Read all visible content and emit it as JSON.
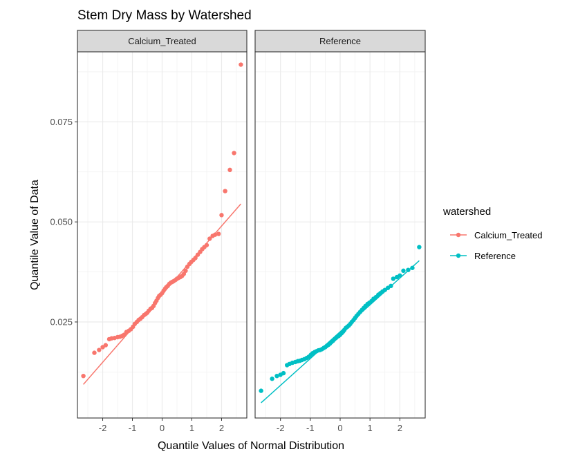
{
  "chart_data": {
    "type": "scatter",
    "title": "Stem Dry Mass by Watershed",
    "xlabel": "Quantile Values of Normal Distribution",
    "ylabel": "Quantile Value of Data",
    "xlim": [
      -2.85,
      2.85
    ],
    "ylim": [
      0.001,
      0.0925
    ],
    "x_ticks": [
      -2,
      -1,
      0,
      1,
      2
    ],
    "x_tick_labels": [
      "-2",
      "-1",
      "0",
      "1",
      "2"
    ],
    "y_ticks": [
      0.025,
      0.05,
      0.075
    ],
    "y_tick_labels": [
      "0.025",
      "0.050",
      "0.075"
    ],
    "grid": true,
    "facets": [
      "Calcium_Treated",
      "Reference"
    ],
    "legend": {
      "title": "watershed",
      "position": "right",
      "entries": [
        "Calcium_Treated",
        "Reference"
      ]
    },
    "series": [
      {
        "name": "Calcium_Treated",
        "color": "#F8766D",
        "qq_line": {
          "x": [
            -2.65,
            2.65
          ],
          "y": [
            0.0094,
            0.0545
          ]
        },
        "points": [
          [
            -2.65,
            0.0115
          ],
          [
            -2.28,
            0.0173
          ],
          [
            -2.12,
            0.018
          ],
          [
            -2.0,
            0.0187
          ],
          [
            -1.9,
            0.0192
          ],
          [
            -1.78,
            0.0207
          ],
          [
            -1.7,
            0.0209
          ],
          [
            -1.6,
            0.021
          ],
          [
            -1.5,
            0.0212
          ],
          [
            -1.42,
            0.0213
          ],
          [
            -1.35,
            0.0215
          ],
          [
            -1.28,
            0.0218
          ],
          [
            -1.2,
            0.0225
          ],
          [
            -1.12,
            0.0228
          ],
          [
            -1.05,
            0.0232
          ],
          [
            -0.98,
            0.0238
          ],
          [
            -0.92,
            0.0245
          ],
          [
            -0.85,
            0.025
          ],
          [
            -0.79,
            0.0255
          ],
          [
            -0.73,
            0.0258
          ],
          [
            -0.67,
            0.0262
          ],
          [
            -0.61,
            0.0267
          ],
          [
            -0.55,
            0.027
          ],
          [
            -0.5,
            0.0273
          ],
          [
            -0.45,
            0.0278
          ],
          [
            -0.39,
            0.0283
          ],
          [
            -0.34,
            0.0285
          ],
          [
            -0.29,
            0.029
          ],
          [
            -0.24,
            0.0297
          ],
          [
            -0.19,
            0.0303
          ],
          [
            -0.14,
            0.031
          ],
          [
            -0.1,
            0.0315
          ],
          [
            -0.05,
            0.0318
          ],
          [
            0.0,
            0.0322
          ],
          [
            0.05,
            0.0328
          ],
          [
            0.1,
            0.0333
          ],
          [
            0.14,
            0.0337
          ],
          [
            0.19,
            0.034
          ],
          [
            0.24,
            0.0345
          ],
          [
            0.29,
            0.0348
          ],
          [
            0.34,
            0.035
          ],
          [
            0.39,
            0.0352
          ],
          [
            0.45,
            0.0355
          ],
          [
            0.5,
            0.0358
          ],
          [
            0.55,
            0.036
          ],
          [
            0.61,
            0.0362
          ],
          [
            0.67,
            0.0365
          ],
          [
            0.73,
            0.037
          ],
          [
            0.79,
            0.0378
          ],
          [
            0.85,
            0.0388
          ],
          [
            0.92,
            0.0395
          ],
          [
            0.98,
            0.04
          ],
          [
            1.05,
            0.0405
          ],
          [
            1.12,
            0.041
          ],
          [
            1.2,
            0.0418
          ],
          [
            1.28,
            0.0425
          ],
          [
            1.35,
            0.0432
          ],
          [
            1.42,
            0.0437
          ],
          [
            1.5,
            0.0442
          ],
          [
            1.6,
            0.0458
          ],
          [
            1.7,
            0.0465
          ],
          [
            1.78,
            0.0468
          ],
          [
            1.9,
            0.047
          ],
          [
            2.0,
            0.0517
          ],
          [
            2.12,
            0.0577
          ],
          [
            2.28,
            0.063
          ],
          [
            2.42,
            0.0672
          ],
          [
            2.65,
            0.0893
          ]
        ]
      },
      {
        "name": "Reference",
        "color": "#00BFC4",
        "qq_line": {
          "x": [
            -2.65,
            2.65
          ],
          "y": [
            0.0048,
            0.0403
          ]
        },
        "points": [
          [
            -2.65,
            0.0078
          ],
          [
            -2.28,
            0.0108
          ],
          [
            -2.12,
            0.0115
          ],
          [
            -2.0,
            0.0118
          ],
          [
            -1.9,
            0.0122
          ],
          [
            -1.78,
            0.0142
          ],
          [
            -1.7,
            0.0145
          ],
          [
            -1.6,
            0.0148
          ],
          [
            -1.5,
            0.015
          ],
          [
            -1.42,
            0.0152
          ],
          [
            -1.35,
            0.0153
          ],
          [
            -1.28,
            0.0155
          ],
          [
            -1.2,
            0.0157
          ],
          [
            -1.12,
            0.016
          ],
          [
            -1.05,
            0.0163
          ],
          [
            -0.98,
            0.0168
          ],
          [
            -0.92,
            0.0172
          ],
          [
            -0.85,
            0.0175
          ],
          [
            -0.79,
            0.0177
          ],
          [
            -0.73,
            0.0179
          ],
          [
            -0.67,
            0.018
          ],
          [
            -0.61,
            0.0182
          ],
          [
            -0.55,
            0.0185
          ],
          [
            -0.5,
            0.0187
          ],
          [
            -0.45,
            0.019
          ],
          [
            -0.39,
            0.0193
          ],
          [
            -0.34,
            0.0196
          ],
          [
            -0.29,
            0.02
          ],
          [
            -0.24,
            0.0203
          ],
          [
            -0.19,
            0.0207
          ],
          [
            -0.14,
            0.021
          ],
          [
            -0.1,
            0.0213
          ],
          [
            -0.05,
            0.0215
          ],
          [
            0.0,
            0.0218
          ],
          [
            0.05,
            0.0222
          ],
          [
            0.1,
            0.0226
          ],
          [
            0.14,
            0.023
          ],
          [
            0.19,
            0.0235
          ],
          [
            0.24,
            0.0238
          ],
          [
            0.29,
            0.0241
          ],
          [
            0.34,
            0.0245
          ],
          [
            0.39,
            0.025
          ],
          [
            0.45,
            0.0255
          ],
          [
            0.5,
            0.026
          ],
          [
            0.55,
            0.0265
          ],
          [
            0.61,
            0.027
          ],
          [
            0.67,
            0.0275
          ],
          [
            0.73,
            0.028
          ],
          [
            0.79,
            0.0285
          ],
          [
            0.85,
            0.029
          ],
          [
            0.92,
            0.0295
          ],
          [
            0.98,
            0.0298
          ],
          [
            1.05,
            0.0302
          ],
          [
            1.12,
            0.0308
          ],
          [
            1.2,
            0.0312
          ],
          [
            1.28,
            0.0318
          ],
          [
            1.35,
            0.0322
          ],
          [
            1.42,
            0.0326
          ],
          [
            1.5,
            0.033
          ],
          [
            1.6,
            0.0335
          ],
          [
            1.7,
            0.034
          ],
          [
            1.78,
            0.0358
          ],
          [
            1.9,
            0.0362
          ],
          [
            2.0,
            0.0366
          ],
          [
            2.12,
            0.0378
          ],
          [
            2.28,
            0.038
          ],
          [
            2.42,
            0.0385
          ],
          [
            2.65,
            0.0437
          ]
        ]
      }
    ]
  }
}
